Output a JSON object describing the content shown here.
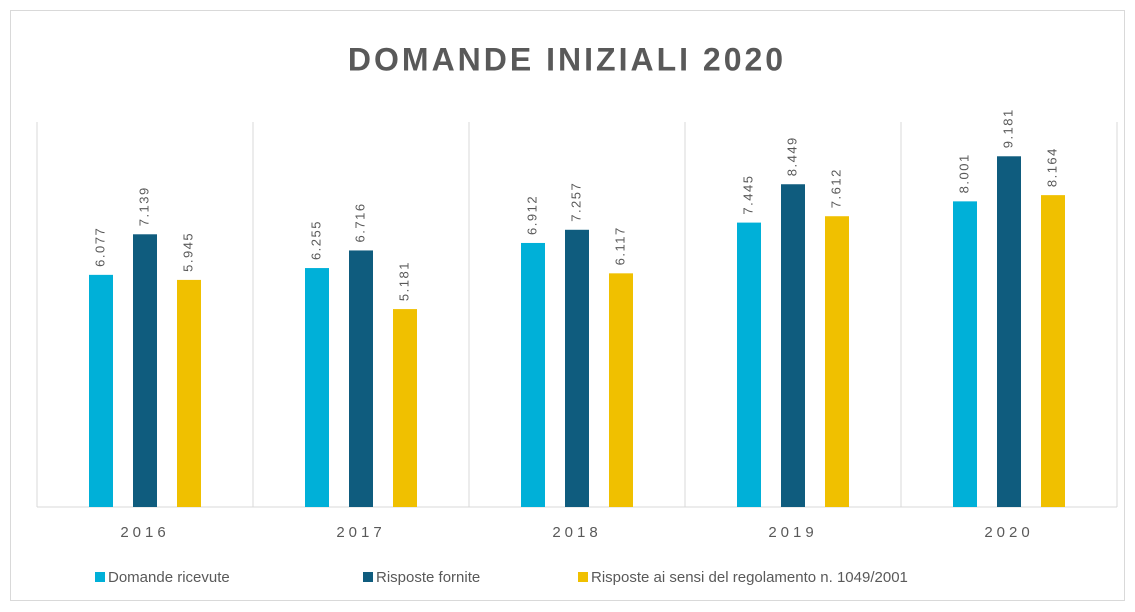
{
  "chart_data": {
    "type": "bar",
    "title": "DOMANDE INIZIALI 2020",
    "categories": [
      "2016",
      "2017",
      "2018",
      "2019",
      "2020"
    ],
    "series": [
      {
        "name": "Domande ricevute",
        "color": "#00b0d8",
        "values": [
          6077,
          6255,
          6912,
          7445,
          8001
        ],
        "value_labels": [
          "6.077",
          "6.255",
          "6.912",
          "7.445",
          "8.001"
        ]
      },
      {
        "name": "Risposte fornite",
        "color": "#0f5c7e",
        "values": [
          7139,
          6716,
          7257,
          8449,
          9181
        ],
        "value_labels": [
          "7.139",
          "6.716",
          "7.257",
          "8.449",
          "9.181"
        ]
      },
      {
        "name": "Risposte ai sensi del regolamento n. 1049/2001",
        "color": "#f0c000",
        "values": [
          5945,
          5181,
          6117,
          7612,
          8164
        ],
        "value_labels": [
          "5.945",
          "5.181",
          "6.117",
          "7.612",
          "8.164"
        ]
      }
    ],
    "ylim": [
      0,
      10000
    ]
  }
}
